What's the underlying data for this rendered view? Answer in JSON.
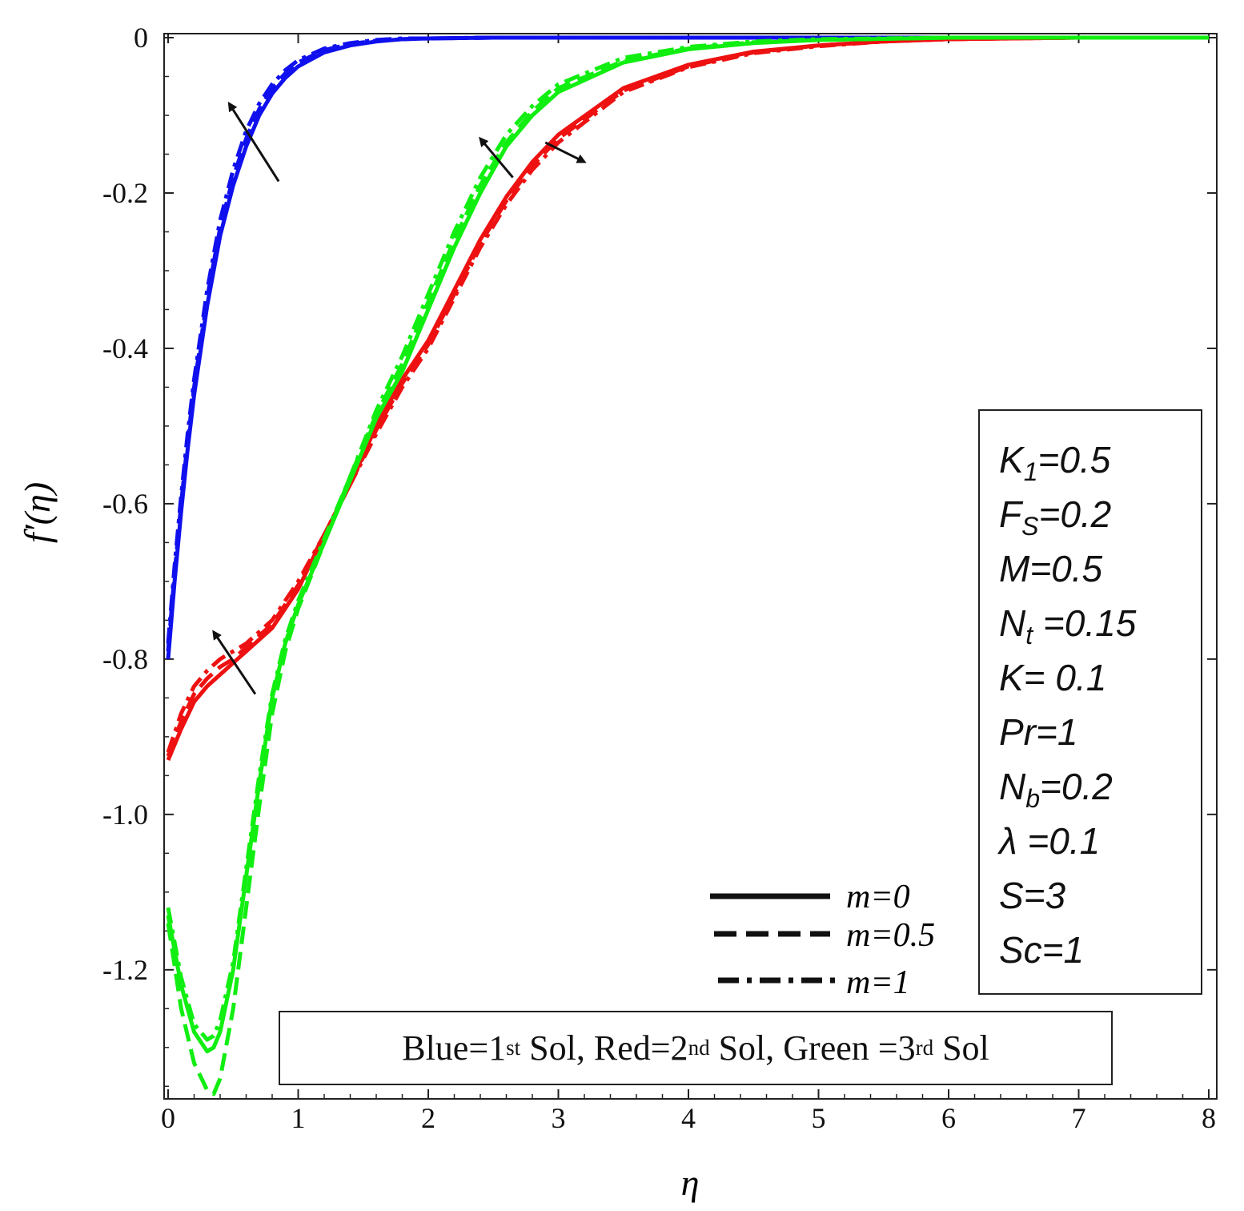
{
  "chart_data": {
    "type": "line",
    "xlabel": "η",
    "ylabel": "f′(η)",
    "xlim": [
      0,
      8
    ],
    "ylim": [
      -1.36,
      0
    ],
    "x_ticks": [
      0,
      1,
      2,
      3,
      4,
      5,
      6,
      7,
      8
    ],
    "y_ticks": [
      0,
      -0.2,
      -0.4,
      -0.6,
      -0.8,
      -1.0,
      -1.2
    ],
    "x_tick_labels": [
      "0",
      "1",
      "2",
      "3",
      "4",
      "5",
      "6",
      "7",
      "8"
    ],
    "y_tick_labels": [
      "0",
      "-0.2",
      "-0.4",
      "-0.6",
      "-0.8",
      "-1.0",
      "-1.2"
    ],
    "grid": false,
    "legend": {
      "placement": "bottom-right",
      "entries": [
        {
          "label": "m=0",
          "style": "solid"
        },
        {
          "label": "m=0.5",
          "style": "dashed"
        },
        {
          "label": "m=1",
          "style": "dashdot"
        }
      ]
    },
    "colors": {
      "blue": "#1010ee",
      "red": "#ee1111",
      "green": "#11ee11",
      "axis": "#222222"
    },
    "series": [
      {
        "name": "m=0",
        "color": "blue",
        "style": "solid",
        "x": [
          0,
          0.05,
          0.1,
          0.15,
          0.2,
          0.3,
          0.4,
          0.5,
          0.6,
          0.7,
          0.8,
          0.9,
          1.0,
          1.2,
          1.4,
          1.6,
          1.8,
          2.0,
          2.5,
          3,
          4,
          5,
          6,
          7,
          8
        ],
        "y": [
          -0.8,
          -0.7,
          -0.61,
          -0.53,
          -0.46,
          -0.345,
          -0.255,
          -0.19,
          -0.14,
          -0.1,
          -0.072,
          -0.052,
          -0.037,
          -0.019,
          -0.01,
          -0.005,
          -0.002,
          -0.001,
          0,
          0,
          0,
          0,
          0,
          0,
          0
        ]
      },
      {
        "name": "m=0.5",
        "color": "blue",
        "style": "dashed",
        "x": [
          0,
          0.05,
          0.1,
          0.15,
          0.2,
          0.3,
          0.4,
          0.5,
          0.6,
          0.7,
          0.8,
          0.9,
          1.0,
          1.2,
          1.4,
          1.6,
          1.8,
          2.0,
          2.5,
          3,
          4,
          5,
          6,
          7,
          8
        ],
        "y": [
          -0.79,
          -0.69,
          -0.6,
          -0.52,
          -0.45,
          -0.335,
          -0.245,
          -0.18,
          -0.13,
          -0.092,
          -0.065,
          -0.046,
          -0.032,
          -0.016,
          -0.008,
          -0.004,
          -0.002,
          -0.001,
          0,
          0,
          0,
          0,
          0,
          0,
          0
        ]
      },
      {
        "name": "m=1",
        "color": "blue",
        "style": "dashdot",
        "x": [
          0,
          0.05,
          0.1,
          0.15,
          0.2,
          0.3,
          0.4,
          0.5,
          0.6,
          0.7,
          0.8,
          0.9,
          1.0,
          1.2,
          1.4,
          1.6,
          1.8,
          2.0,
          2.5,
          3,
          4,
          5,
          6,
          7,
          8
        ],
        "y": [
          -0.78,
          -0.68,
          -0.59,
          -0.51,
          -0.44,
          -0.325,
          -0.235,
          -0.17,
          -0.12,
          -0.085,
          -0.06,
          -0.042,
          -0.029,
          -0.014,
          -0.007,
          -0.003,
          -0.001,
          -0.001,
          0,
          0,
          0,
          0,
          0,
          0,
          0
        ]
      },
      {
        "name": "m=0",
        "color": "red",
        "style": "solid",
        "x": [
          0,
          0.1,
          0.2,
          0.3,
          0.4,
          0.5,
          0.6,
          0.8,
          1.0,
          1.2,
          1.4,
          1.6,
          1.8,
          2.0,
          2.2,
          2.4,
          2.6,
          2.8,
          3.0,
          3.5,
          4.0,
          4.5,
          5.0,
          5.5,
          6,
          7,
          8
        ],
        "y": [
          -0.93,
          -0.89,
          -0.855,
          -0.835,
          -0.82,
          -0.805,
          -0.79,
          -0.76,
          -0.71,
          -0.64,
          -0.575,
          -0.5,
          -0.44,
          -0.39,
          -0.325,
          -0.26,
          -0.205,
          -0.16,
          -0.125,
          -0.065,
          -0.035,
          -0.018,
          -0.01,
          -0.005,
          -0.002,
          0,
          0
        ]
      },
      {
        "name": "m=0.5",
        "color": "red",
        "style": "dashed",
        "x": [
          0,
          0.1,
          0.2,
          0.3,
          0.4,
          0.5,
          0.6,
          0.8,
          1.0,
          1.2,
          1.4,
          1.6,
          1.8,
          2.0,
          2.2,
          2.4,
          2.6,
          2.8,
          3.0,
          3.5,
          4.0,
          4.5,
          5.0,
          5.5,
          6,
          7,
          8
        ],
        "y": [
          -0.925,
          -0.88,
          -0.845,
          -0.825,
          -0.81,
          -0.8,
          -0.785,
          -0.755,
          -0.705,
          -0.64,
          -0.575,
          -0.505,
          -0.445,
          -0.395,
          -0.33,
          -0.265,
          -0.21,
          -0.165,
          -0.13,
          -0.068,
          -0.037,
          -0.019,
          -0.01,
          -0.005,
          -0.002,
          0,
          0
        ]
      },
      {
        "name": "m=1",
        "color": "red",
        "style": "dashdot",
        "x": [
          0,
          0.1,
          0.2,
          0.3,
          0.4,
          0.5,
          0.6,
          0.8,
          1.0,
          1.2,
          1.4,
          1.6,
          1.8,
          2.0,
          2.2,
          2.4,
          2.6,
          2.8,
          3.0,
          3.5,
          4.0,
          4.5,
          5.0,
          5.5,
          6,
          7,
          8
        ],
        "y": [
          -0.92,
          -0.87,
          -0.835,
          -0.815,
          -0.8,
          -0.79,
          -0.78,
          -0.75,
          -0.7,
          -0.64,
          -0.575,
          -0.51,
          -0.45,
          -0.4,
          -0.335,
          -0.27,
          -0.215,
          -0.17,
          -0.135,
          -0.07,
          -0.038,
          -0.02,
          -0.011,
          -0.005,
          -0.002,
          0,
          0
        ]
      },
      {
        "name": "m=0",
        "color": "green",
        "style": "solid",
        "x": [
          0,
          0.1,
          0.2,
          0.3,
          0.35,
          0.4,
          0.5,
          0.6,
          0.7,
          0.8,
          0.9,
          1.0,
          1.2,
          1.4,
          1.6,
          1.8,
          2.0,
          2.2,
          2.4,
          2.6,
          2.8,
          3.0,
          3.5,
          4.0,
          4.5,
          5.0,
          6,
          7,
          8
        ],
        "y": [
          -1.13,
          -1.22,
          -1.28,
          -1.305,
          -1.3,
          -1.28,
          -1.2,
          -1.08,
          -0.96,
          -0.85,
          -0.78,
          -0.73,
          -0.65,
          -0.57,
          -0.49,
          -0.43,
          -0.35,
          -0.27,
          -0.2,
          -0.14,
          -0.1,
          -0.07,
          -0.032,
          -0.015,
          -0.007,
          -0.003,
          0,
          0,
          0
        ]
      },
      {
        "name": "m=0.5",
        "color": "green",
        "style": "dashed",
        "x": [
          0,
          0.1,
          0.2,
          0.3,
          0.35,
          0.4,
          0.5,
          0.6,
          0.7,
          0.8,
          0.9,
          1.0,
          1.2,
          1.4,
          1.6,
          1.8,
          2.0,
          2.2,
          2.4,
          2.6,
          2.8,
          3.0,
          3.5,
          4.0,
          4.5,
          5.0,
          6,
          7,
          8
        ],
        "y": [
          -1.14,
          -1.25,
          -1.32,
          -1.355,
          -1.36,
          -1.34,
          -1.25,
          -1.12,
          -0.99,
          -0.87,
          -0.79,
          -0.735,
          -0.65,
          -0.565,
          -0.485,
          -0.42,
          -0.34,
          -0.26,
          -0.19,
          -0.135,
          -0.095,
          -0.065,
          -0.03,
          -0.014,
          -0.006,
          -0.003,
          0,
          0,
          0
        ]
      },
      {
        "name": "m=1",
        "color": "green",
        "style": "dashdot",
        "x": [
          0,
          0.1,
          0.2,
          0.3,
          0.35,
          0.4,
          0.5,
          0.6,
          0.7,
          0.8,
          0.9,
          1.0,
          1.2,
          1.4,
          1.6,
          1.8,
          2.0,
          2.2,
          2.4,
          2.6,
          2.8,
          3.0,
          3.5,
          4.0,
          4.5,
          5.0,
          6,
          7,
          8
        ],
        "y": [
          -1.12,
          -1.21,
          -1.27,
          -1.29,
          -1.285,
          -1.265,
          -1.19,
          -1.07,
          -0.95,
          -0.845,
          -0.775,
          -0.725,
          -0.645,
          -0.565,
          -0.48,
          -0.41,
          -0.33,
          -0.25,
          -0.18,
          -0.125,
          -0.088,
          -0.06,
          -0.026,
          -0.012,
          -0.005,
          -0.002,
          0,
          0,
          0
        ]
      }
    ],
    "arrows": [
      {
        "from": [
          0.85,
          -0.185
        ],
        "to": [
          0.47,
          -0.085
        ]
      },
      {
        "from": [
          0.67,
          -0.845
        ],
        "to": [
          0.35,
          -0.765
        ]
      },
      {
        "from": [
          2.65,
          -0.18
        ],
        "to": [
          2.4,
          -0.13
        ]
      },
      {
        "from": [
          2.9,
          -0.135
        ],
        "to": [
          3.2,
          -0.16
        ]
      }
    ]
  },
  "params_box": {
    "lines": [
      {
        "main": "K",
        "sub": "1",
        "rest": "=0.5"
      },
      {
        "main": "F",
        "sub": "S",
        "rest": "=0.2"
      },
      {
        "main": "M=0.5",
        "sub": "",
        "rest": ""
      },
      {
        "main": "N",
        "sub": "t",
        "rest": " =0.15"
      },
      {
        "main": "K= 0.1",
        "sub": "",
        "rest": ""
      },
      {
        "main": "Pr=1",
        "sub": "",
        "rest": ""
      },
      {
        "main": "N",
        "sub": "b",
        "rest": "=0.2"
      },
      {
        "main": "λ =0.1",
        "sub": "",
        "rest": ""
      },
      {
        "main": "S=3",
        "sub": "",
        "rest": ""
      },
      {
        "main": "Sc=1",
        "sub": "",
        "rest": ""
      }
    ]
  },
  "solution_box": {
    "blue_text": "Blue=1",
    "blue_sup": "st",
    "blue_tail": " Sol, ",
    "red_text": "Red=2",
    "red_sup": "nd",
    "red_tail": " Sol, ",
    "green_text": "Green =3",
    "green_sup": "rd",
    "green_tail": " Sol"
  }
}
